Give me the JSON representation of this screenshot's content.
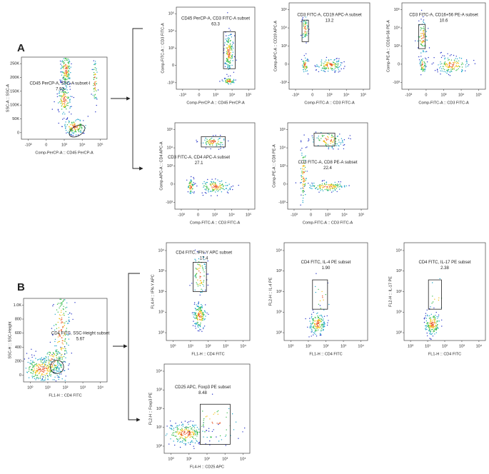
{
  "panels": [
    {
      "label": "A"
    },
    {
      "label": "B"
    }
  ],
  "plots": [
    {
      "title": "CD45 PerCP-A, SSC-A subset-I",
      "value": "7.92",
      "x_label": "Comp-PerCP-A :: CD45 PerCP-A",
      "y_label": "SSC-A :: SSC-A",
      "x_ticks": [
        "-10³",
        "0",
        "10³",
        "10⁴",
        "10⁵"
      ],
      "y_ticks": [
        "250K",
        "200K",
        "150K",
        "100K",
        "50K",
        "0"
      ]
    },
    {
      "title": "CD45 PerCP-A, CD3 FITC-A subset",
      "value": "63.3",
      "x_label": "Comp-PerCP-A :: CD45 PerCP-A",
      "y_label": "Comp-FITC-A :: CD3 FITC-A",
      "x_ticks": [
        "-10³",
        "0",
        "10³",
        "10⁴",
        "10⁵"
      ],
      "y_ticks": [
        "10⁵",
        "10⁴",
        "10³",
        "0",
        "-10³"
      ]
    },
    {
      "title": "CD3 FITC-A, CD19 APC-A subset",
      "value": "13.2",
      "x_label": "Comp-FITC-A :: CD3 FITC-A",
      "y_label": "Comp-APC-A :: CD19 APC-A",
      "x_ticks": [
        "-10³",
        "0",
        "10³",
        "10⁴",
        "10⁵"
      ],
      "y_ticks": [
        "10⁵",
        "10⁴",
        "10³",
        "0",
        "-10³"
      ]
    },
    {
      "title": "CD3 FITC-A, CD16+56 PE-A subset",
      "value": "10.6",
      "x_label": "Comp-FITC-A :: CD3 FITC-A",
      "y_label": "Comp-PE-A :: CD16+56 PE-A",
      "x_ticks": [
        "-10³",
        "0",
        "10³",
        "10⁴",
        "10⁵"
      ],
      "y_ticks": [
        "10⁵",
        "10⁴",
        "10³",
        "0",
        "-10³"
      ]
    },
    {
      "title": "CD3 FITC-A, CD4 APC-A subset",
      "value": "27.1",
      "x_label": "Comp-FITC-A :: CD3 FITC-A",
      "y_label": "Comp-APC-A :: CD4 APC-A",
      "x_ticks": [
        "-10³",
        "0",
        "10³",
        "10⁴",
        "10⁵"
      ],
      "y_ticks": [
        "10⁵",
        "10⁴",
        "10³",
        "0",
        "-10³"
      ]
    },
    {
      "title": "CD3 FITC-A, CD8 PE-A subset",
      "value": "22.4",
      "x_label": "Comp-FITC-A :: CD3 FITC-A",
      "y_label": "Comp-PE-A :: CD8 PE-A",
      "x_ticks": [
        "-10³",
        "0",
        "10³",
        "10⁴",
        "10⁵"
      ],
      "y_ticks": [
        "10⁵",
        "10⁴",
        "10³",
        "0",
        "-10³"
      ]
    },
    {
      "title": "CD4 FITC, SSC-Height subset",
      "value": "5.67",
      "x_label": "FL1-H :: CD4 FITC",
      "y_label": "SSC-H :: SSC-Height",
      "x_ticks": [
        "10⁰",
        "10¹",
        "10²",
        "10³",
        "10⁴"
      ],
      "y_ticks": [
        "1.0K",
        "800",
        "600",
        "400",
        "200",
        "0"
      ]
    },
    {
      "title": "CD4 FITC, IFN-Y APC subset",
      "value": "17.4",
      "x_label": "FL1-H :: CD4 FITC",
      "y_label": "FL4-H :: IFN-Y APC",
      "x_ticks": [
        "10⁰",
        "10¹",
        "10²",
        "10³",
        "10⁴"
      ],
      "y_ticks": [
        "10⁴",
        "10³",
        "10²",
        "10¹",
        "10⁰"
      ]
    },
    {
      "title": "CD4 FITC, IL-4 PE subset",
      "value": "1.90",
      "x_label": "FL1-H :: CD4 FITC",
      "y_label": "FL2-H :: IL-4 PE",
      "x_ticks": [
        "10⁰",
        "10¹",
        "10²",
        "10³",
        "10⁴"
      ],
      "y_ticks": [
        "10⁴",
        "10³",
        "10²",
        "10¹",
        "10⁰"
      ]
    },
    {
      "title": "CD4 FITC, IL-17 PE subset",
      "value": "2.38",
      "x_label": "FL1-H :: CD4 FITC",
      "y_label": "FL2-H :: IL-17 PE",
      "x_ticks": [
        "10⁰",
        "10¹",
        "10²",
        "10³",
        "10⁴"
      ],
      "y_ticks": [
        "10⁴",
        "10³",
        "10²",
        "10¹",
        "10⁰"
      ]
    },
    {
      "title": "CD25 APC, Foxp3 PE subset",
      "value": "8.48",
      "x_label": "FL4-H :: CD25 APC",
      "y_label": "FL2-H :: Foxp3 PE",
      "x_ticks": [
        "10⁰",
        "10¹",
        "10²",
        "10³",
        "10⁴"
      ],
      "y_ticks": [
        "10⁴",
        "10³",
        "10²",
        "10¹",
        "10⁰"
      ]
    }
  ]
}
